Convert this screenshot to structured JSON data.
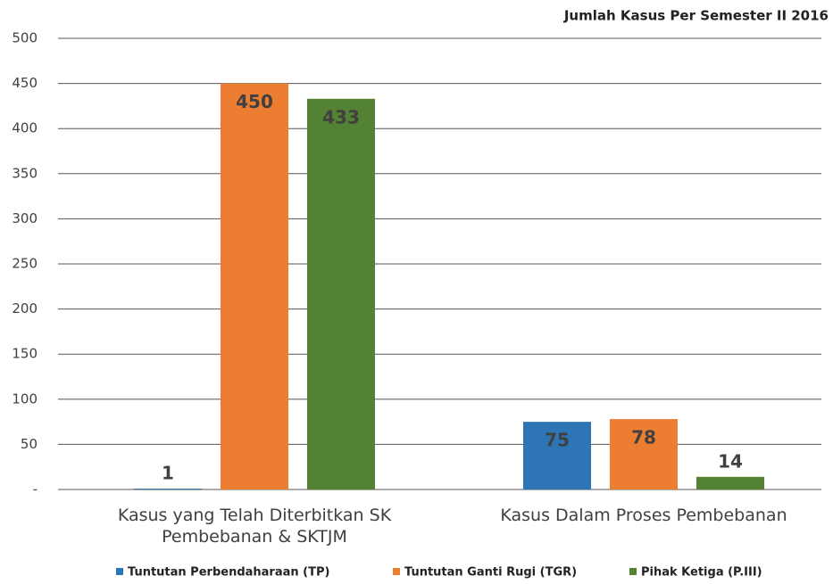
{
  "chart_data": {
    "type": "bar",
    "title": "Jumlah Kasus Per Semester II 2016",
    "categories": [
      "Kasus yang Telah Diterbitkan SK Pembebanan & SKTJM",
      "Kasus Dalam Proses Pembebanan"
    ],
    "series": [
      {
        "name": "Tuntutan Perbendaharaan (TP)",
        "color": "#2e75b6",
        "values": [
          1,
          75
        ]
      },
      {
        "name": "Tuntutan Ganti Rugi (TGR)",
        "color": "#ed7d31",
        "values": [
          450,
          78
        ]
      },
      {
        "name": "Pihak Ketiga (P.III)",
        "color": "#548235",
        "values": [
          433,
          14
        ]
      }
    ],
    "ylim": [
      0,
      500
    ],
    "yticks": [
      {
        "value": 0,
        "label": "-"
      },
      50,
      100,
      150,
      200,
      250,
      300,
      350,
      400,
      450,
      500
    ],
    "grid": true,
    "legend": "bottom"
  }
}
